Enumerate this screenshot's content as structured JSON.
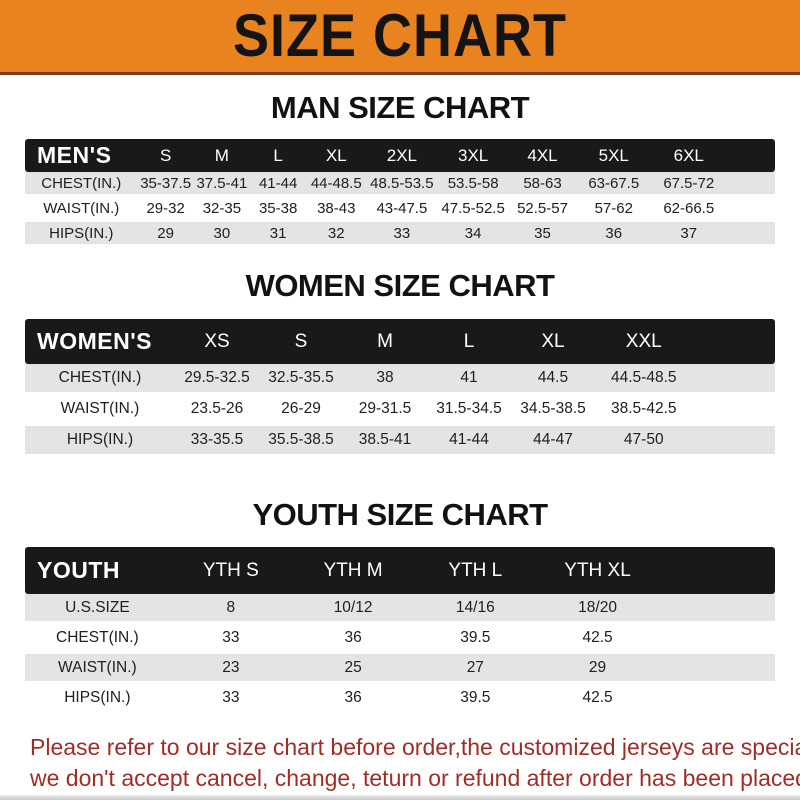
{
  "banner": {
    "title": "SIZE CHART",
    "bg_color": "#E8831F"
  },
  "sections": [
    {
      "heading": "MAN SIZE CHART",
      "label": "MEN'S",
      "columns": [
        "S",
        "M",
        "L",
        "XL",
        "2XL",
        "3XL",
        "4XL",
        "5XL",
        "6XL"
      ],
      "rows": [
        {
          "label": "CHEST(IN.)",
          "values": [
            "35-37.5",
            "37.5-41",
            "41-44",
            "44-48.5",
            "48.5-53.5",
            "53.5-58",
            "58-63",
            "63-67.5",
            "67.5-72"
          ]
        },
        {
          "label": "WAIST(IN.)",
          "values": [
            "29-32",
            "32-35",
            "35-38",
            "38-43",
            "43-47.5",
            "47.5-52.5",
            "52.5-57",
            "57-62",
            "62-66.5"
          ]
        },
        {
          "label": "HIPS(IN.)",
          "values": [
            "29",
            "30",
            "31",
            "32",
            "33",
            "34",
            "35",
            "36",
            "37"
          ]
        }
      ]
    },
    {
      "heading": "WOMEN SIZE CHART",
      "label": "WOMEN'S",
      "columns": [
        "XS",
        "S",
        "M",
        "L",
        "XL",
        "XXL"
      ],
      "rows": [
        {
          "label": "CHEST(IN.)",
          "values": [
            "29.5-32.5",
            "32.5-35.5",
            "38",
            "41",
            "44.5",
            "44.5-48.5"
          ]
        },
        {
          "label": "WAIST(IN.)",
          "values": [
            "23.5-26",
            "26-29",
            "29-31.5",
            "31.5-34.5",
            "34.5-38.5",
            "38.5-42.5"
          ]
        },
        {
          "label": "HIPS(IN.)",
          "values": [
            "33-35.5",
            "35.5-38.5",
            "38.5-41",
            "41-44",
            "44-47",
            "47-50"
          ]
        }
      ]
    },
    {
      "heading": "YOUTH SIZE CHART",
      "label": "YOUTH",
      "columns": [
        "YTH S",
        "YTH M",
        "YTH L",
        "YTH XL"
      ],
      "rows": [
        {
          "label": "U.S.SIZE",
          "values": [
            "8",
            "10/12",
            "14/16",
            "18/20"
          ]
        },
        {
          "label": "CHEST(IN.)",
          "values": [
            "33",
            "36",
            "39.5",
            "42.5"
          ]
        },
        {
          "label": "WAIST(IN.)",
          "values": [
            "23",
            "25",
            "27",
            "29"
          ]
        },
        {
          "label": "HIPS(IN.)",
          "values": [
            "33",
            "36",
            "39.5",
            "42.5"
          ]
        }
      ]
    }
  ],
  "footer": {
    "lines": [
      "Please refer to our size chart before order,the customized jerseys are special products,",
      "we don't accept cancel, change, teturn or refund after order has been placed!"
    ],
    "text_color": "#9F2D27"
  },
  "colors": {
    "banner_orange": "#E8831F",
    "header_bar_black": "#191919",
    "row_gray": "#E4E4E4"
  }
}
